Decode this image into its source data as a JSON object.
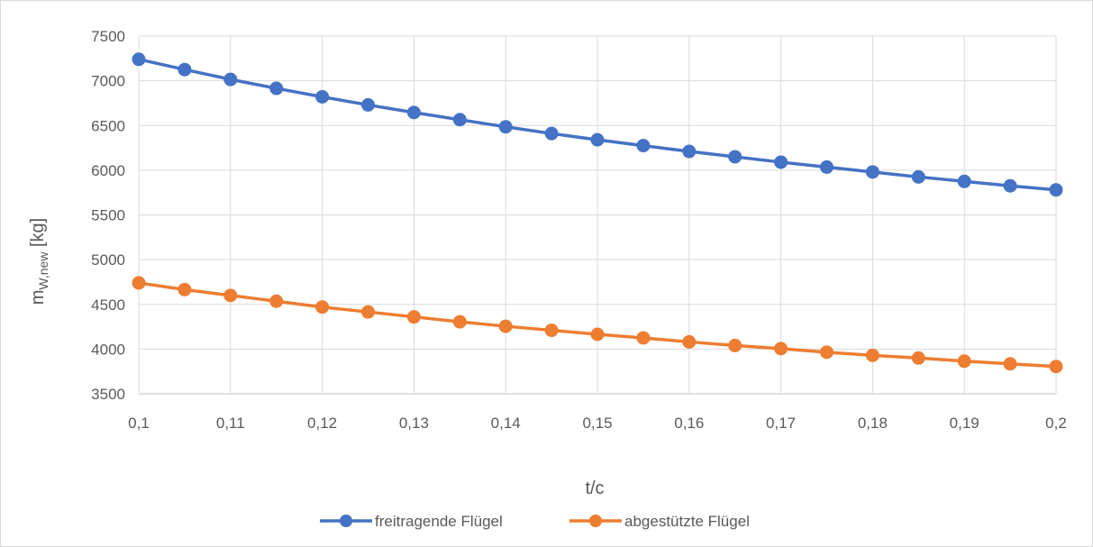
{
  "chart_data": {
    "type": "line",
    "title": "",
    "xlabel": "t/c",
    "ylabel": {
      "main": "m",
      "subscript": "W,new",
      "unit": " [kg]"
    },
    "x": [
      0.1,
      0.105,
      0.11,
      0.115,
      0.12,
      0.125,
      0.13,
      0.135,
      0.14,
      0.145,
      0.15,
      0.155,
      0.16,
      0.165,
      0.17,
      0.175,
      0.18,
      0.185,
      0.19,
      0.195,
      0.2
    ],
    "x_tick_values": [
      0.1,
      0.11,
      0.12,
      0.13,
      0.14,
      0.15,
      0.16,
      0.17,
      0.18,
      0.19,
      0.2
    ],
    "x_tick_labels": [
      "0,1",
      "0,11",
      "0,12",
      "0,13",
      "0,14",
      "0,15",
      "0,16",
      "0,17",
      "0,18",
      "0,19",
      "0,2"
    ],
    "y_tick_values": [
      3500,
      4000,
      4500,
      5000,
      5500,
      6000,
      6500,
      7000,
      7500
    ],
    "y_tick_labels": [
      "3500",
      "4000",
      "4500",
      "5000",
      "5500",
      "6000",
      "6500",
      "7000",
      "7500"
    ],
    "xlim": [
      0.1,
      0.2
    ],
    "ylim": [
      3500,
      7500
    ],
    "grid": true,
    "legend_position": "bottom",
    "series": [
      {
        "name": "freitragende Flügel",
        "color": "#4472c4",
        "values": [
          7240,
          7125,
          7015,
          6915,
          6820,
          6730,
          6645,
          6565,
          6485,
          6410,
          6340,
          6275,
          6210,
          6150,
          6090,
          6035,
          5980,
          5925,
          5875,
          5825,
          5780
        ]
      },
      {
        "name": "abgestützte Flügel",
        "color": "#ed7d31",
        "values": [
          4740,
          4665,
          4600,
          4535,
          4470,
          4415,
          4360,
          4305,
          4255,
          4210,
          4165,
          4125,
          4080,
          4040,
          4005,
          3965,
          3930,
          3900,
          3865,
          3835,
          3805
        ]
      }
    ]
  }
}
